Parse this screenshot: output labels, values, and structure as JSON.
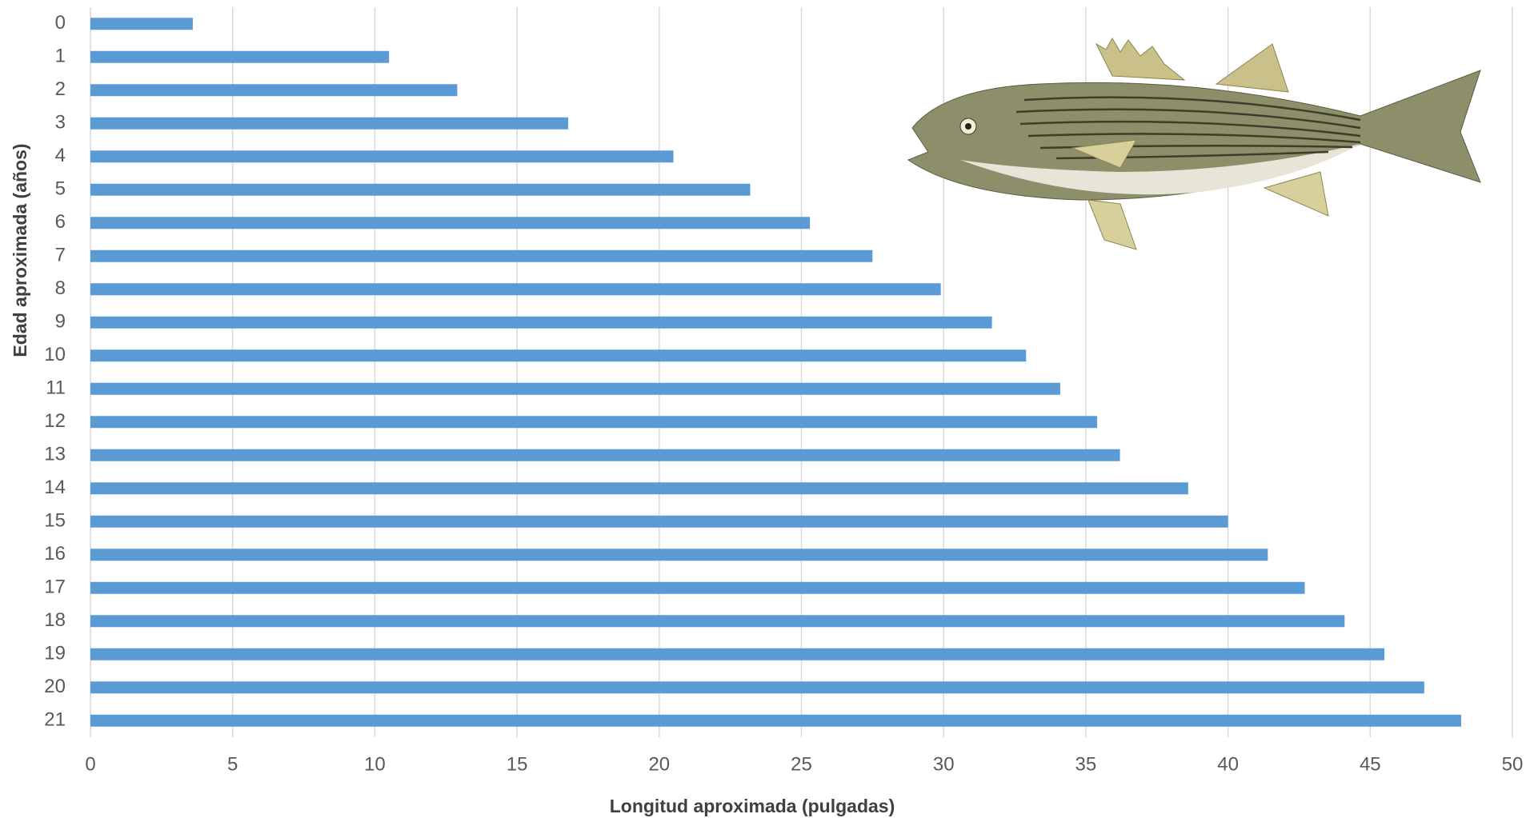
{
  "chart_data": {
    "type": "barh",
    "x_label": "Longitud aproximada (pulgadas)",
    "y_label": "Edad aproximada (años)",
    "categories": [
      "0",
      "1",
      "2",
      "3",
      "4",
      "5",
      "6",
      "7",
      "8",
      "9",
      "10",
      "11",
      "12",
      "13",
      "14",
      "15",
      "16",
      "17",
      "18",
      "19",
      "20",
      "21"
    ],
    "values": [
      3.6,
      10.5,
      12.9,
      16.8,
      20.5,
      23.2,
      25.3,
      27.5,
      29.9,
      31.7,
      32.9,
      34.1,
      35.4,
      36.2,
      38.6,
      40.0,
      41.4,
      42.7,
      44.1,
      45.5,
      46.9,
      48.2
    ],
    "color": "#5b9bd5",
    "xlim": [
      0,
      50
    ],
    "xticks": [
      0,
      5,
      10,
      15,
      20,
      25,
      30,
      35,
      40,
      45,
      50
    ],
    "grid": true
  }
}
